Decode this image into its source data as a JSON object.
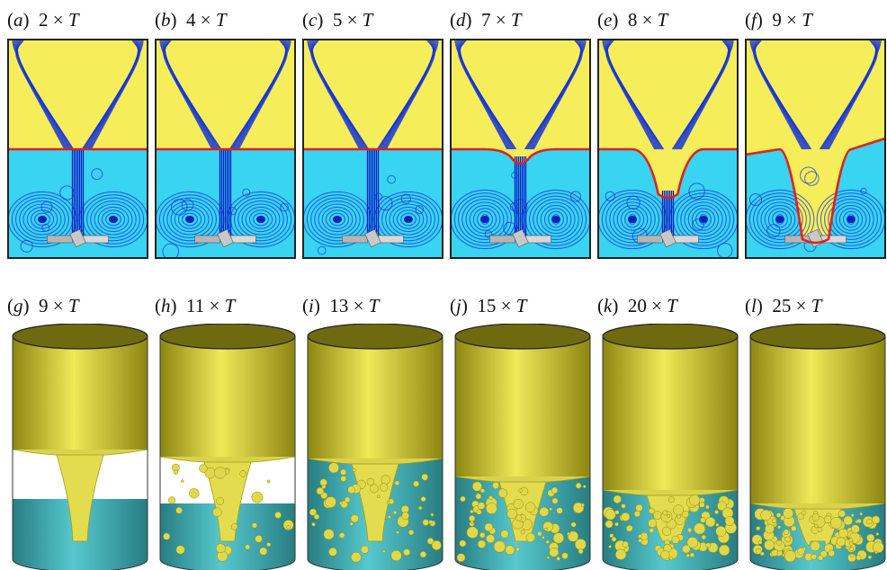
{
  "figure": {
    "row1": [
      {
        "letter": "a",
        "time": "2 × ",
        "t": "T"
      },
      {
        "letter": "b",
        "time": "4 × ",
        "t": "T"
      },
      {
        "letter": "c",
        "time": "5 × ",
        "t": "T"
      },
      {
        "letter": "d",
        "time": "7 × ",
        "t": "T"
      },
      {
        "letter": "e",
        "time": "8 × ",
        "t": "T"
      },
      {
        "letter": "f",
        "time": "9 × ",
        "t": "T"
      }
    ],
    "row2": [
      {
        "letter": "g",
        "time": "9 × ",
        "t": "T"
      },
      {
        "letter": "h",
        "time": "11 × ",
        "t": "T"
      },
      {
        "letter": "i",
        "time": "13 × ",
        "t": "T"
      },
      {
        "letter": "j",
        "time": "15 × ",
        "t": "T"
      },
      {
        "letter": "k",
        "time": "20 × ",
        "t": "T"
      },
      {
        "letter": "l",
        "time": "25 × ",
        "t": "T"
      }
    ],
    "colors": {
      "gas": "#f5ee5a",
      "liquid": "#39d4f2",
      "streamline": "#1533d6",
      "interface": "#e02020",
      "tank_top": "#b8b21e",
      "tank_liquid": "#3fb7bd",
      "bubble": "#e0d84a"
    }
  }
}
